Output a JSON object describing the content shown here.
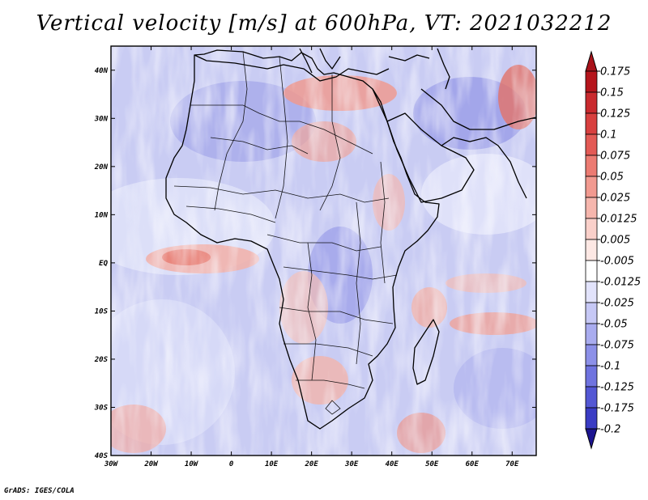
{
  "title": "Vertical velocity [m/s] at 600hPa, VT: 2021032212",
  "credit": "GrADS: IGES/COLA",
  "map": {
    "region": "Africa",
    "lon_range": [
      -30,
      76
    ],
    "lat_range": [
      -40,
      45
    ],
    "lat_ticks": [
      {
        "value": 40,
        "label": "40N"
      },
      {
        "value": 30,
        "label": "30N"
      },
      {
        "value": 20,
        "label": "20N"
      },
      {
        "value": 10,
        "label": "10N"
      },
      {
        "value": 0,
        "label": "EQ"
      },
      {
        "value": -10,
        "label": "10S"
      },
      {
        "value": -20,
        "label": "20S"
      },
      {
        "value": -30,
        "label": "30S"
      },
      {
        "value": -40,
        "label": "40S"
      }
    ],
    "lon_ticks": [
      {
        "value": -30,
        "label": "30W"
      },
      {
        "value": -20,
        "label": "20W"
      },
      {
        "value": -10,
        "label": "10W"
      },
      {
        "value": 0,
        "label": "0"
      },
      {
        "value": 10,
        "label": "10E"
      },
      {
        "value": 20,
        "label": "20E"
      },
      {
        "value": 30,
        "label": "30E"
      },
      {
        "value": 40,
        "label": "40E"
      },
      {
        "value": 50,
        "label": "50E"
      },
      {
        "value": 60,
        "label": "60E"
      },
      {
        "value": 70,
        "label": "70E"
      }
    ]
  },
  "colorbar": {
    "levels": [
      {
        "label": "0.175",
        "color": "#b5151c"
      },
      {
        "label": "0.15",
        "color": "#c92a2e"
      },
      {
        "label": "0.125",
        "color": "#d8403f"
      },
      {
        "label": "0.1",
        "color": "#e35a55"
      },
      {
        "label": "0.075",
        "color": "#ec7b72"
      },
      {
        "label": "0.05",
        "color": "#f29a90"
      },
      {
        "label": "0.025",
        "color": "#f6b6ad"
      },
      {
        "label": "0.0125",
        "color": "#fad0ca"
      },
      {
        "label": "0.005",
        "color": "#fde8e4"
      },
      {
        "label": "-0.005",
        "color": "#ffffff"
      },
      {
        "label": "-0.0125",
        "color": "#e2e3fb"
      },
      {
        "label": "-0.025",
        "color": "#c6c8f5"
      },
      {
        "label": "-0.05",
        "color": "#a9acef"
      },
      {
        "label": "-0.075",
        "color": "#8c90e8"
      },
      {
        "label": "-0.1",
        "color": "#6f73df"
      },
      {
        "label": "-0.125",
        "color": "#5357d4"
      },
      {
        "label": "-0.175",
        "color": "#3a3cc4"
      },
      {
        "label": "-0.2",
        "color": "#2620b0"
      }
    ],
    "max_color": "#a8121a",
    "min_color": "#1c1490"
  }
}
